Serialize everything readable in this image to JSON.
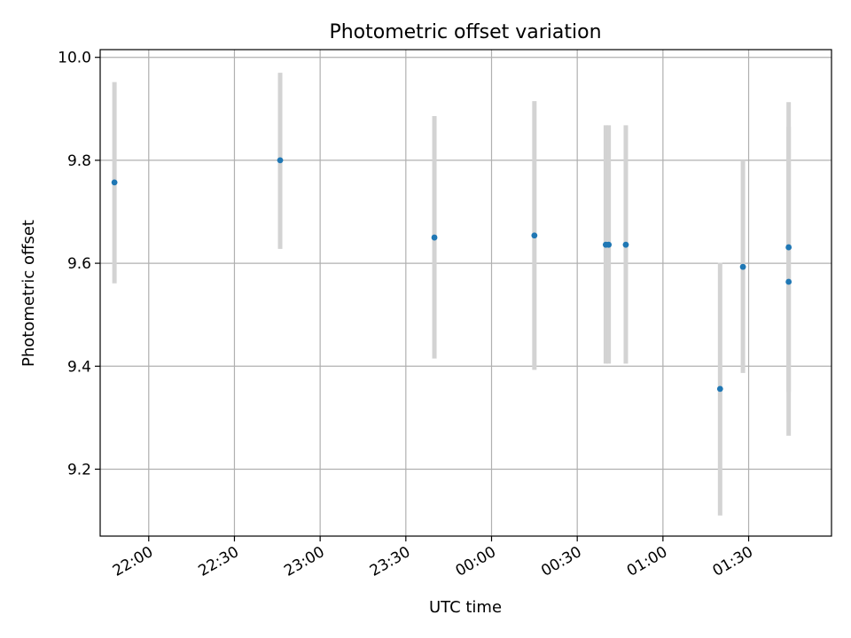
{
  "chart_data": {
    "type": "scatter",
    "title": "Photometric offset variation",
    "xlabel": "UTC time",
    "ylabel": "Photometric offset",
    "x_tick_labels": [
      "22:00",
      "22:30",
      "23:00",
      "23:30",
      "00:00",
      "00:30",
      "01:00",
      "01:30"
    ],
    "x_ticks": [
      "22:00",
      "22:30",
      "23:00",
      "23:30",
      "00:00",
      "00:30",
      "01:00",
      "01:30"
    ],
    "y_tick_labels": [
      "9.2",
      "9.4",
      "9.6",
      "9.8",
      "10.0"
    ],
    "y_ticks": [
      9.2,
      9.4,
      9.6,
      9.8,
      10.0
    ],
    "xlim": [
      "21:43",
      "01:59"
    ],
    "ylim": [
      9.07,
      10.015
    ],
    "grid": true,
    "error_bar_color": "#d3d3d3",
    "marker_color": "#1f77b4",
    "points": [
      {
        "t": "21:48",
        "y": 9.757,
        "ylo": 9.561,
        "yhi": 9.952
      },
      {
        "t": "22:46",
        "y": 9.8,
        "ylo": 9.628,
        "yhi": 9.97
      },
      {
        "t": "23:40",
        "y": 9.65,
        "ylo": 9.415,
        "yhi": 9.886
      },
      {
        "t": "00:15",
        "y": 9.654,
        "ylo": 9.393,
        "yhi": 9.915
      },
      {
        "t": "00:40",
        "y": 9.636,
        "ylo": 9.405,
        "yhi": 9.868
      },
      {
        "t": "00:41",
        "y": 9.636,
        "ylo": 9.405,
        "yhi": 9.868
      },
      {
        "t": "00:47",
        "y": 9.636,
        "ylo": 9.405,
        "yhi": 9.868
      },
      {
        "t": "01:20",
        "y": 9.356,
        "ylo": 9.11,
        "yhi": 9.601
      },
      {
        "t": "01:28",
        "y": 9.593,
        "ylo": 9.387,
        "yhi": 9.8
      },
      {
        "t": "01:44",
        "y": 9.564,
        "ylo": 9.265,
        "yhi": 9.865
      },
      {
        "t": "01:44",
        "y": 9.631,
        "ylo": 9.35,
        "yhi": 9.913
      }
    ]
  }
}
